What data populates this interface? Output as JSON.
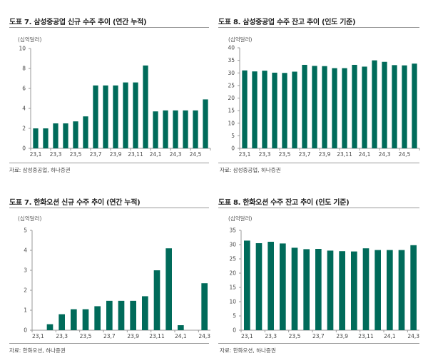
{
  "colors": {
    "bar": "#006b5a",
    "axis": "#999999",
    "rule": "#999999"
  },
  "panels": [
    {
      "title": "도표 7. 삼성중공업 신규 수주 추이 (연간 누적)",
      "unit": "(십억달러)",
      "source": "자료: 삼성중공업, 하나증권"
    },
    {
      "title": "도표 8. 삼성중공업 수주 잔고 추이 (인도 기준)",
      "unit": "(십억달러)",
      "source": "자료: 삼성중공업, 하나증권"
    },
    {
      "title": "도표 7. 한화오션 신규 수주 추이 (연간 누적)",
      "unit": "(십억달러)",
      "source": "자료: 한화오션, 하나증권"
    },
    {
      "title": "도표 8. 한화오션 수주 잔고 추이 (인도 기준)",
      "unit": "(십억달러)",
      "source": "자료: 한화오션, 하나증권"
    }
  ],
  "chart_data": [
    {
      "type": "bar",
      "title": "도표 7. 삼성중공업 신규 수주 추이 (연간 누적)",
      "ylabel": "(십억달러)",
      "categories": [
        "23.1",
        "23.2",
        "23.3",
        "23.4",
        "23.5",
        "23.6",
        "23.7",
        "23.8",
        "23.9",
        "23.10",
        "23.11",
        "23.12",
        "24.1",
        "24.2",
        "24.3",
        "24.4",
        "24.5",
        "24.6"
      ],
      "tick_labels": [
        "23,1",
        "23,3",
        "23,5",
        "23,7",
        "23,9",
        "23,11",
        "24,1",
        "24,3",
        "24,5"
      ],
      "values": [
        2.0,
        2.0,
        2.5,
        2.5,
        2.7,
        3.2,
        6.3,
        6.3,
        6.3,
        6.6,
        6.6,
        8.3,
        3.7,
        3.8,
        3.8,
        3.8,
        3.8,
        4.9
      ],
      "ylim": [
        0,
        10
      ],
      "yticks": [
        0,
        2,
        4,
        6,
        8,
        10
      ],
      "grid": false,
      "legend": "none"
    },
    {
      "type": "bar",
      "title": "도표 8. 삼성중공업 수주 잔고 추이 (인도 기준)",
      "ylabel": "(십억달러)",
      "categories": [
        "23.1",
        "23.2",
        "23.3",
        "23.4",
        "23.5",
        "23.6",
        "23.7",
        "23.8",
        "23.9",
        "23.10",
        "23.11",
        "23.12",
        "24.1",
        "24.2",
        "24.3",
        "24.4",
        "24.5",
        "24.6"
      ],
      "tick_labels": [
        "23,1",
        "23,3",
        "23,5",
        "23,7",
        "23,9",
        "23,11",
        "24,1",
        "24,3",
        "24,5"
      ],
      "values": [
        31.0,
        30.6,
        30.9,
        30.1,
        30.0,
        30.5,
        33.2,
        32.8,
        32.7,
        31.9,
        31.9,
        33.2,
        32.5,
        35.0,
        34.4,
        33.1,
        33.0,
        33.7
      ],
      "ylim": [
        0,
        40
      ],
      "yticks": [
        0,
        5,
        10,
        15,
        20,
        25,
        30,
        35,
        40
      ],
      "grid": false,
      "legend": "none"
    },
    {
      "type": "bar",
      "title": "도표 7. 한화오션 신규 수주 추이 (연간 누적)",
      "ylabel": "(십억달러)",
      "categories": [
        "23.1",
        "23.2",
        "23.3",
        "23.4",
        "23.5",
        "23.6",
        "23.7",
        "23.8",
        "23.9",
        "23.10",
        "23.11",
        "23.12",
        "24.1",
        "24.2",
        "24.3"
      ],
      "tick_labels": [
        "23,1",
        "23,3",
        "23,5",
        "23,7",
        "23,9",
        "23,11",
        "24,1",
        "24,3"
      ],
      "values": [
        0,
        0.3,
        0.8,
        1.05,
        1.05,
        1.2,
        1.47,
        1.47,
        1.47,
        1.7,
        3.0,
        4.1,
        0.25,
        0,
        2.35
      ],
      "ylim": [
        0,
        5
      ],
      "yticks": [
        0,
        1,
        2,
        3,
        4,
        5
      ],
      "grid": false,
      "legend": "none"
    },
    {
      "type": "bar",
      "title": "도표 8. 한화오션 수주 잔고 추이 (인도 기준)",
      "ylabel": "(십억달러)",
      "categories": [
        "23.1",
        "23.2",
        "23.3",
        "23.4",
        "23.5",
        "23.6",
        "23.7",
        "23.8",
        "23.9",
        "23.10",
        "23.11",
        "23.12",
        "24.1",
        "24.2",
        "24.3"
      ],
      "tick_labels": [
        "23,1",
        "23,3",
        "23,5",
        "23,7",
        "23,9",
        "23,11",
        "24,1",
        "24,3"
      ],
      "values": [
        31.4,
        30.5,
        31.0,
        30.4,
        28.9,
        28.4,
        28.5,
        27.9,
        27.7,
        27.6,
        28.7,
        28.1,
        28.1,
        28.1,
        29.8
      ],
      "ylim": [
        0,
        35
      ],
      "yticks": [
        0,
        5,
        10,
        15,
        20,
        25,
        30,
        35
      ],
      "grid": false,
      "legend": "none"
    }
  ]
}
